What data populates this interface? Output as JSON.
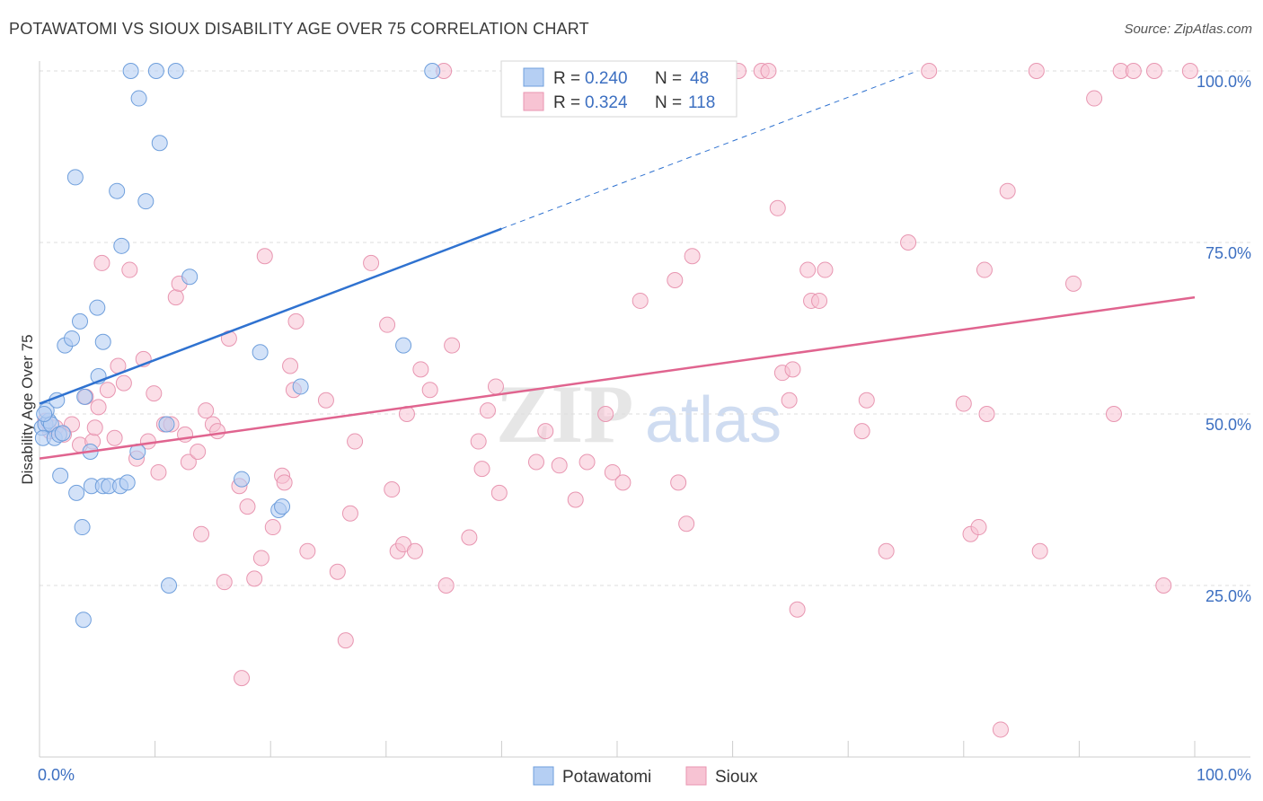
{
  "title": "POTAWATOMI VS SIOUX DISABILITY AGE OVER 75 CORRELATION CHART",
  "source": "Source: ZipAtlas.com",
  "watermark": {
    "zip": "ZIP",
    "atlas": "atlas"
  },
  "colors": {
    "potawatomi_fill": "#b5cff3",
    "potawatomi_stroke": "#6f9fdc",
    "potawatomi_line": "#2f72d0",
    "sioux_fill": "#f7c3d3",
    "sioux_stroke": "#e896b1",
    "sioux_line": "#e0648f",
    "tick_text": "#3c6fc1",
    "grid": "#dddddd"
  },
  "legend": {
    "r_label": "R =",
    "n_label": "N =",
    "rows": [
      {
        "r": "0.240",
        "n": "48"
      },
      {
        "r": "0.324",
        "n": "118"
      }
    ]
  },
  "bottom_legend": [
    "Potawatomi",
    "Sioux"
  ],
  "chart_data": {
    "type": "scatter",
    "ylabel": "Disability Age Over 75",
    "xlabel": "",
    "x_tick_labels": [
      "0.0%",
      "100.0%"
    ],
    "y_tick_labels": [
      "25.0%",
      "50.0%",
      "75.0%",
      "100.0%"
    ],
    "y_ticks": [
      25,
      50,
      75,
      100
    ],
    "xlim": [
      0,
      100
    ],
    "ylim": [
      0,
      100
    ],
    "grid": true,
    "series": [
      {
        "name": "Potawatomi",
        "r": 0.24,
        "n": 48,
        "trend": {
          "x": [
            0,
            40
          ],
          "y": [
            51.5,
            77
          ],
          "extended_x": [
            40,
            76
          ],
          "extended_y": [
            77,
            100
          ]
        },
        "points": [
          [
            0.2,
            48
          ],
          [
            0.5,
            48.5
          ],
          [
            0.8,
            49
          ],
          [
            0.3,
            46.5
          ],
          [
            0.6,
            50.5
          ],
          [
            1.0,
            48.5
          ],
          [
            1.3,
            46.5
          ],
          [
            1.7,
            47
          ],
          [
            2.0,
            47.2
          ],
          [
            1.5,
            52
          ],
          [
            1.8,
            41
          ],
          [
            3.2,
            38.5
          ],
          [
            3.7,
            33.5
          ],
          [
            3.8,
            20
          ],
          [
            4.5,
            39.5
          ],
          [
            5.5,
            39.5
          ],
          [
            6.0,
            39.5
          ],
          [
            7.0,
            39.5
          ],
          [
            7.6,
            40
          ],
          [
            8.5,
            44.5
          ],
          [
            2.2,
            60
          ],
          [
            2.8,
            61
          ],
          [
            3.5,
            63.5
          ],
          [
            3.9,
            52.5
          ],
          [
            4.4,
            44.5
          ],
          [
            5.0,
            65.5
          ],
          [
            5.5,
            60.5
          ],
          [
            5.1,
            55.5
          ],
          [
            7.1,
            74.5
          ],
          [
            6.7,
            82.5
          ],
          [
            3.1,
            84.5
          ],
          [
            8.6,
            96
          ],
          [
            9.2,
            81
          ],
          [
            10.4,
            89.5
          ],
          [
            7.9,
            100
          ],
          [
            10.1,
            100
          ],
          [
            11.8,
            100
          ],
          [
            13.0,
            70
          ],
          [
            11.0,
            48.5
          ],
          [
            11.2,
            25
          ],
          [
            17.5,
            40.5
          ],
          [
            19.1,
            59
          ],
          [
            20.7,
            36
          ],
          [
            21.0,
            36.5
          ],
          [
            22.6,
            54
          ],
          [
            31.5,
            60
          ],
          [
            34.0,
            100
          ],
          [
            0.4,
            50
          ]
        ]
      },
      {
        "name": "Sioux",
        "r": 0.324,
        "n": 118,
        "trend": {
          "x": [
            0,
            100
          ],
          "y": [
            43.5,
            67
          ]
        },
        "points": [
          [
            0.5,
            49
          ],
          [
            0.9,
            47.5
          ],
          [
            1.4,
            48
          ],
          [
            2.1,
            47
          ],
          [
            2.8,
            48.5
          ],
          [
            3.5,
            45.5
          ],
          [
            4.0,
            52.5
          ],
          [
            4.6,
            46
          ],
          [
            4.8,
            48
          ],
          [
            5.1,
            51
          ],
          [
            5.4,
            72
          ],
          [
            5.9,
            53.5
          ],
          [
            6.5,
            46.5
          ],
          [
            6.8,
            57
          ],
          [
            7.3,
            54.5
          ],
          [
            7.8,
            71
          ],
          [
            8.4,
            43.5
          ],
          [
            9.0,
            58
          ],
          [
            9.4,
            46
          ],
          [
            9.9,
            53
          ],
          [
            10.3,
            41.5
          ],
          [
            10.8,
            48.5
          ],
          [
            11.4,
            48.5
          ],
          [
            11.8,
            67
          ],
          [
            12.1,
            69
          ],
          [
            12.6,
            47
          ],
          [
            12.9,
            43
          ],
          [
            13.7,
            44.5
          ],
          [
            14.0,
            32.5
          ],
          [
            14.4,
            50.5
          ],
          [
            15.0,
            48.5
          ],
          [
            15.4,
            47.5
          ],
          [
            16.0,
            25.5
          ],
          [
            16.4,
            61
          ],
          [
            17.3,
            39.5
          ],
          [
            17.5,
            11.5
          ],
          [
            18.0,
            36.5
          ],
          [
            18.6,
            26
          ],
          [
            19.2,
            29
          ],
          [
            19.5,
            73
          ],
          [
            20.2,
            33.5
          ],
          [
            21.0,
            41
          ],
          [
            21.2,
            40
          ],
          [
            21.7,
            57
          ],
          [
            22.2,
            63.5
          ],
          [
            22.0,
            53.5
          ],
          [
            23.2,
            30
          ],
          [
            24.8,
            52
          ],
          [
            25.8,
            27
          ],
          [
            26.5,
            17
          ],
          [
            26.9,
            35.5
          ],
          [
            27.3,
            46
          ],
          [
            28.7,
            72
          ],
          [
            30.1,
            63
          ],
          [
            30.5,
            39
          ],
          [
            31.0,
            30
          ],
          [
            31.5,
            31
          ],
          [
            31.8,
            50
          ],
          [
            32.5,
            30
          ],
          [
            33.0,
            56.5
          ],
          [
            33.8,
            53.5
          ],
          [
            35.0,
            100
          ],
          [
            35.2,
            25
          ],
          [
            35.7,
            60
          ],
          [
            37.2,
            32
          ],
          [
            38.0,
            46
          ],
          [
            38.3,
            42
          ],
          [
            38.8,
            50.5
          ],
          [
            39.5,
            54
          ],
          [
            39.8,
            38.5
          ],
          [
            43.0,
            43
          ],
          [
            43.8,
            47.5
          ],
          [
            45.0,
            42.5
          ],
          [
            46.4,
            37.5
          ],
          [
            47.4,
            43
          ],
          [
            49.0,
            50
          ],
          [
            49.6,
            41.5
          ],
          [
            50.5,
            40
          ],
          [
            52.0,
            66.5
          ],
          [
            55.0,
            69.5
          ],
          [
            55.3,
            40
          ],
          [
            56.0,
            34
          ],
          [
            56.5,
            73
          ],
          [
            60.5,
            100
          ],
          [
            62.5,
            100
          ],
          [
            63.1,
            100
          ],
          [
            63.9,
            80
          ],
          [
            64.3,
            56
          ],
          [
            64.9,
            52
          ],
          [
            65.2,
            56.5
          ],
          [
            65.6,
            21.5
          ],
          [
            66.5,
            71
          ],
          [
            66.8,
            66.5
          ],
          [
            67.5,
            66.5
          ],
          [
            68.0,
            71
          ],
          [
            71.2,
            47.5
          ],
          [
            71.6,
            52
          ],
          [
            73.3,
            30
          ],
          [
            75.2,
            75
          ],
          [
            80.0,
            51.5
          ],
          [
            80.6,
            32.5
          ],
          [
            81.3,
            33.5
          ],
          [
            81.8,
            71
          ],
          [
            82.0,
            50
          ],
          [
            83.2,
            4
          ],
          [
            83.8,
            82.5
          ],
          [
            86.3,
            100
          ],
          [
            86.6,
            30
          ],
          [
            89.5,
            69
          ],
          [
            91.3,
            96
          ],
          [
            93.0,
            50
          ],
          [
            93.6,
            100
          ],
          [
            94.7,
            100
          ],
          [
            96.5,
            100
          ],
          [
            97.3,
            25
          ],
          [
            99.6,
            100
          ],
          [
            50.0,
            97
          ],
          [
            77.0,
            100
          ]
        ]
      }
    ]
  }
}
